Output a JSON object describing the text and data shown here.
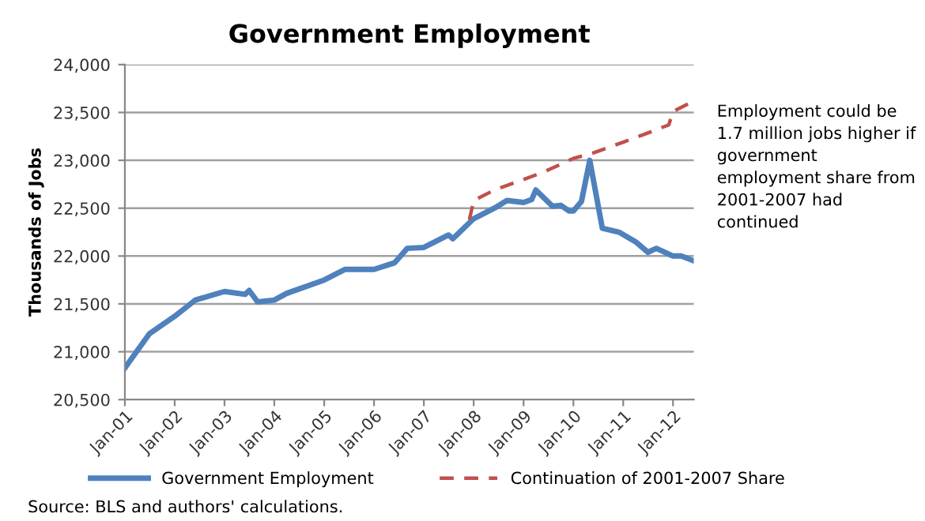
{
  "chart_data": {
    "type": "line",
    "title": "Government Employment",
    "ylabel": "Thousands of Jobs",
    "xlim": [
      "2001-01",
      "2012-06"
    ],
    "xticks": [
      {
        "value": "2001-01",
        "label": "Jan-01"
      },
      {
        "value": "2002-01",
        "label": "Jan-02"
      },
      {
        "value": "2003-01",
        "label": "Jan-03"
      },
      {
        "value": "2004-01",
        "label": "Jan-04"
      },
      {
        "value": "2005-01",
        "label": "Jan-05"
      },
      {
        "value": "2006-01",
        "label": "Jan-06"
      },
      {
        "value": "2007-01",
        "label": "Jan-07"
      },
      {
        "value": "2008-01",
        "label": "Jan-08"
      },
      {
        "value": "2009-01",
        "label": "Jan-09"
      },
      {
        "value": "2010-01",
        "label": "Jan-10"
      },
      {
        "value": "2011-01",
        "label": "Jan-11"
      },
      {
        "value": "2012-01",
        "label": "Jan-12"
      }
    ],
    "ylim": [
      20500,
      24000
    ],
    "yticks": [
      {
        "value": 20500,
        "label": "20,500"
      },
      {
        "value": 21000,
        "label": "21,000"
      },
      {
        "value": 21500,
        "label": "21,500"
      },
      {
        "value": 22000,
        "label": "22,000"
      },
      {
        "value": 22500,
        "label": "22,500"
      },
      {
        "value": 23000,
        "label": "23,000"
      },
      {
        "value": 23500,
        "label": "23,500"
      },
      {
        "value": 24000,
        "label": "24,000"
      }
    ],
    "grid": "y",
    "legend": "bottom",
    "marker": "none",
    "series": [
      {
        "name": "Government Employment",
        "color": "#4f81bd",
        "line_style": "solid",
        "x": [
          "2001-01",
          "2001-07",
          "2002-01",
          "2002-06",
          "2003-01",
          "2003-06",
          "2003-07",
          "2003-09",
          "2004-01",
          "2004-04",
          "2005-01",
          "2005-06",
          "2006-01",
          "2006-06",
          "2006-09",
          "2007-01",
          "2007-07",
          "2007-08",
          "2008-01",
          "2008-06",
          "2008-09",
          "2009-01",
          "2009-03",
          "2009-04",
          "2009-08",
          "2009-10",
          "2009-12",
          "2010-01",
          "2010-03",
          "2010-05",
          "2010-08",
          "2010-12",
          "2011-04",
          "2011-07",
          "2011-09",
          "2012-01",
          "2012-03",
          "2012-06"
        ],
        "values": [
          20830,
          21190,
          21370,
          21540,
          21630,
          21600,
          21640,
          21520,
          21540,
          21610,
          21750,
          21860,
          21860,
          21930,
          22080,
          22090,
          22220,
          22180,
          22390,
          22500,
          22580,
          22560,
          22590,
          22690,
          22520,
          22530,
          22470,
          22470,
          22570,
          23000,
          22290,
          22250,
          22150,
          22040,
          22080,
          22000,
          22000,
          21950
        ]
      },
      {
        "name": "Continuation of 2001-2007 Share",
        "color": "#c0504d",
        "line_style": "dashed",
        "x": [
          "2007-12",
          "2008-01",
          "2008-06",
          "2009-01",
          "2009-06",
          "2010-01",
          "2010-06",
          "2011-01",
          "2011-06",
          "2011-12",
          "2012-01",
          "2012-06"
        ],
        "values": [
          22380,
          22580,
          22690,
          22800,
          22880,
          23020,
          23080,
          23190,
          23270,
          23370,
          23510,
          23620
        ]
      }
    ],
    "annotations": [
      "Employment could be 1.7 million jobs higher if government employment share from 2001-2007 had continued",
      "Source: BLS and authors' calculations."
    ]
  }
}
